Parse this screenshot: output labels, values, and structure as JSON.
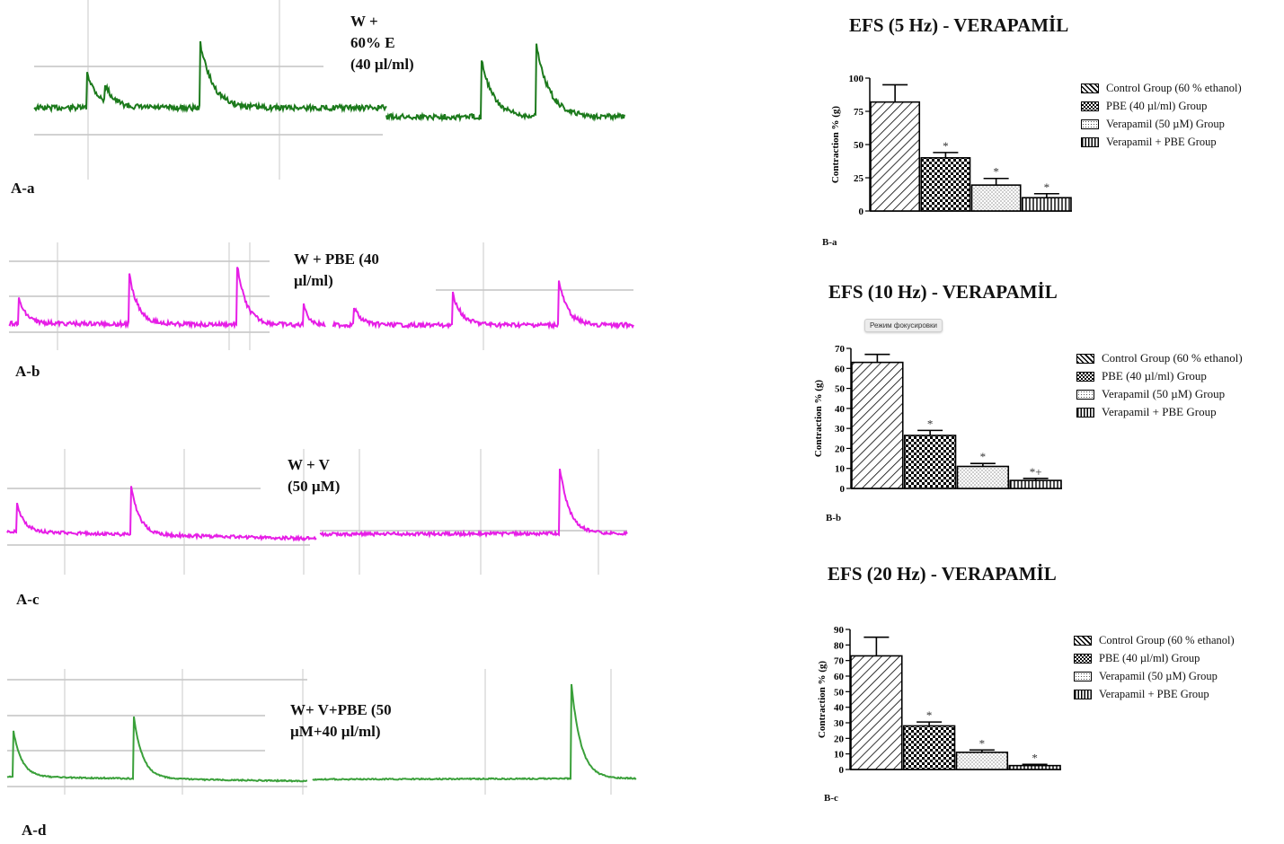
{
  "traces": [
    {
      "label": "A-a",
      "caption": "W +\n60% E\n(40 µl/ml)",
      "color": "#1c7a1c",
      "baselines": [
        [
          0.36,
          0.56
        ],
        [
          0.24,
          0.26
        ]
      ],
      "spikes": [
        [
          0.15,
          0.5,
          0.26
        ],
        [
          0.47,
          0.95,
          0.33
        ],
        [
          0.2,
          0.25,
          0.21
        ],
        [
          0.4,
          0.8,
          0.3
        ],
        [
          0.63,
          1.0,
          0.35
        ]
      ],
      "tail_spikes": [],
      "noise": 0.05
    },
    {
      "label": "A-b",
      "caption": "W + PBE (40\nµl/ml)",
      "color": "#e61ee6",
      "baselines": [
        [
          0.2,
          0.2
        ],
        [
          0.2,
          0.2
        ]
      ],
      "spikes": [
        [
          0.03,
          0.4,
          0.15
        ],
        [
          0.38,
          0.8,
          0.2
        ],
        [
          0.72,
          1.0,
          0.2
        ],
        [
          0.93,
          0.4,
          0.05
        ],
        [
          0.07,
          0.3,
          0.15
        ],
        [
          0.4,
          0.5,
          0.2
        ],
        [
          0.75,
          0.75,
          0.2
        ]
      ],
      "tail_spikes": [],
      "noise": 0.04
    },
    {
      "label": "A-c",
      "caption": "W + V\n(50 µM)",
      "color": "#e61ee6",
      "baselines": [
        [
          0.22,
          0.12
        ],
        [
          0.2,
          0.22
        ]
      ],
      "spikes": [
        [
          0.03,
          0.45,
          0.15
        ],
        [
          0.4,
          0.75,
          0.18
        ],
        [
          0.78,
          1.0,
          0.22
        ]
      ],
      "tail_spikes": [],
      "noise": 0.03
    },
    {
      "label": "A-d",
      "caption": "W+ V+PBE (50\nµM+40 µl/ml)",
      "color": "#3aa03a",
      "baselines": [
        [
          0.06,
          0.06
        ],
        [
          0.06,
          0.06
        ]
      ],
      "spikes": [
        [
          0.02,
          0.5,
          0.18
        ],
        [
          0.42,
          0.7,
          0.2
        ],
        [
          0.8,
          1.0,
          0.22
        ]
      ],
      "tail_spikes": [],
      "noise": 0.012
    }
  ],
  "chart_data": [
    {
      "type": "bar",
      "label": "B-a",
      "title": "EFS (5 Hz) - VERAPAMİL",
      "xlabel": "",
      "ylabel": "Contraction % (g)",
      "ylim": [
        0,
        100
      ],
      "yticks": [
        0,
        25,
        50,
        75,
        100
      ],
      "categories": [
        "Control Group (60 % ethanol)",
        "PBE (40 µl/ml) Group",
        "Verapamil (50 µM) Group",
        "Verapamil + PBE Group"
      ],
      "values": [
        82,
        40,
        19.5,
        10
      ],
      "errors": [
        13,
        4,
        5,
        3
      ],
      "markers": [
        "",
        "*",
        "*",
        "*"
      ],
      "legend": [
        "Control Group (60 % ethanol)",
        "PBE (40 µl/ml) Group",
        "Verapamil (50 µM) Group",
        "Verapamil + PBE Group"
      ]
    },
    {
      "type": "bar",
      "label": "B-b",
      "title": "EFS (10 Hz) - VERAPAMİL",
      "xlabel": "",
      "ylabel": "Contraction % (g)",
      "ylim": [
        0,
        70
      ],
      "yticks": [
        0,
        10,
        20,
        30,
        40,
        50,
        60,
        70
      ],
      "categories": [
        "Control Group (60 % ethanol)",
        "PBE (40 µl/ml) Group",
        "Verapamil (50 µM) Group",
        "Verapamil + PBE Group"
      ],
      "values": [
        63,
        26.5,
        11,
        4
      ],
      "errors": [
        4,
        2.5,
        1.5,
        1
      ],
      "markers": [
        "",
        "*",
        "*",
        "*+"
      ],
      "legend": [
        "Control Group (60 % ethanol)",
        "PBE (40 µl/ml) Group",
        "Verapamil (50 µM) Group",
        "Verapamil + PBE Group"
      ]
    },
    {
      "type": "bar",
      "label": "B-c",
      "title": "EFS (20 Hz) - VERAPAMİL",
      "xlabel": "",
      "ylabel": "Contraction % (g)",
      "ylim": [
        0,
        90
      ],
      "yticks": [
        0,
        10,
        20,
        30,
        40,
        50,
        60,
        70,
        80,
        90
      ],
      "categories": [
        "Control Group (60 % ethanol)",
        "PBE (40 µl/ml) Group",
        "Verapamil (50 µM) Group",
        "Verapamil + PBE Group"
      ],
      "values": [
        73,
        28,
        11,
        2.5
      ],
      "errors": [
        12,
        2.5,
        1.5,
        0.8
      ],
      "markers": [
        "",
        "*",
        "*",
        "*"
      ],
      "legend": [
        "Control Group (60 % ethanol)",
        "PBE (40 µl/ml) Group",
        "Verapamil (50 µM) Group",
        "Verapamil + PBE Group"
      ]
    }
  ],
  "tooltip": {
    "text": "Режим фокусировки"
  }
}
